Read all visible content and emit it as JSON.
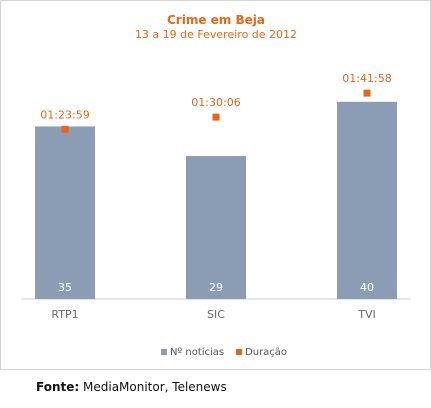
{
  "chart_data": {
    "type": "bar",
    "title": "Crime em Beja",
    "subtitle": "13 a 19 de Fevereiro de 2012",
    "categories": [
      "RTP1",
      "SIC",
      "TVI"
    ],
    "series": [
      {
        "name": "Nº notícias",
        "values": [
          35,
          29,
          40
        ],
        "color": "#8a9db5",
        "labels": [
          "35",
          "29",
          "40"
        ]
      },
      {
        "name": "Duração",
        "values_seconds": [
          5039,
          5406,
          6118
        ],
        "labels": [
          "01:23:59",
          "01:30:06",
          "01:41:58"
        ],
        "color": "#e8661b",
        "marker": "square"
      }
    ],
    "ylim_count": [
      0,
      43
    ],
    "ylim_seconds": [
      0,
      6300
    ],
    "legend_position": "bottom",
    "grid": false
  },
  "source": {
    "label": "Fonte:",
    "text": "MediaMonitor, Telenews"
  }
}
